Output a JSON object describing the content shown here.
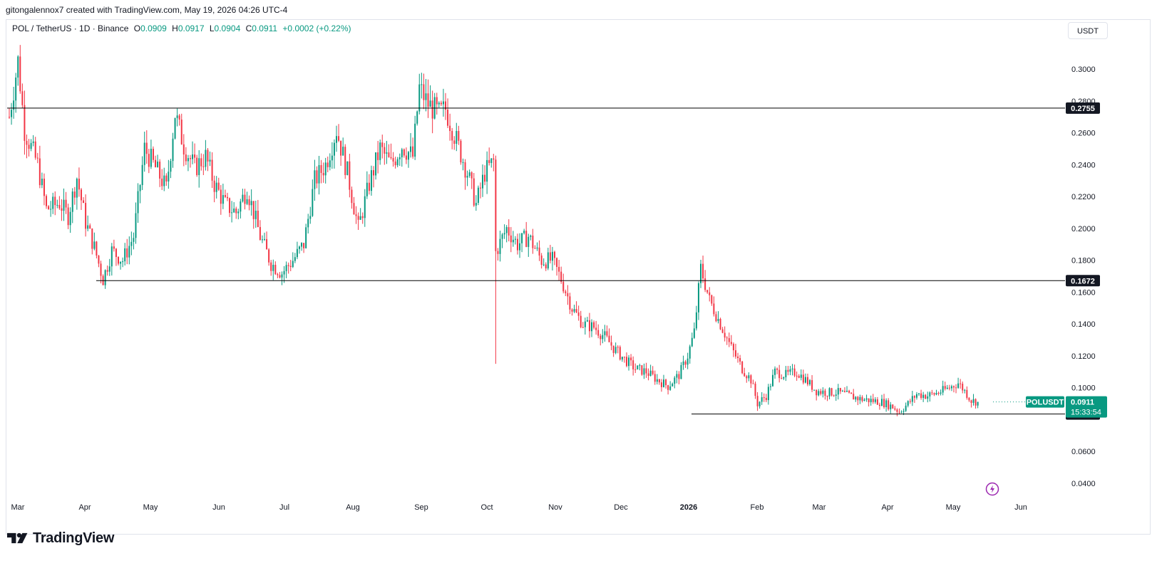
{
  "header": {
    "caption": "gitongalennox7 created with TradingView.com, May 19, 2026 04:26 UTC-4"
  },
  "legend": {
    "symbol": "POL / TetherUS · 1D · Binance",
    "open_label": "O",
    "open": "0.0909",
    "high_label": "H",
    "high": "0.0917",
    "low_label": "L",
    "low": "0.0904",
    "close_label": "C",
    "close": "0.0911",
    "change": "+0.0002 (+0.22%)"
  },
  "currency_button": "USDT",
  "footer": {
    "brand": "TradingView",
    "logo_icon": "tradingview-logo-icon"
  },
  "colors": {
    "up": "#089981",
    "down": "#f23645",
    "text": "#131722",
    "line": "#000000",
    "badge": "#131722"
  },
  "price_badge": {
    "symbol": "POLUSDT",
    "price": "0.0911",
    "countdown": "15:33:54"
  },
  "levels": [
    {
      "label": "0.2755",
      "value": 0.2755
    },
    {
      "label": "0.1672",
      "value": 0.1672
    },
    {
      "label": "0.0835",
      "value": 0.0835
    }
  ],
  "chart_data": {
    "type": "candlestick",
    "y_axis": {
      "range": [
        0.028,
        0.328
      ],
      "ticks": [
        "0.3000",
        "0.2800",
        "0.2600",
        "0.2400",
        "0.2200",
        "0.2000",
        "0.1800",
        "0.1600",
        "0.1400",
        "0.1200",
        "0.1000",
        "0.0600",
        "0.0400"
      ]
    },
    "x_axis": {
      "labels": [
        "Mar",
        "Apr",
        "May",
        "Jun",
        "Jul",
        "Aug",
        "Sep",
        "Oct",
        "Nov",
        "Dec",
        "2026",
        "Feb",
        "Mar",
        "Apr",
        "May",
        "Jun"
      ]
    },
    "close_path": [
      [
        "2025-03-01",
        0.27
      ],
      [
        "2025-03-05",
        0.305
      ],
      [
        "2025-03-08",
        0.262
      ],
      [
        "2025-03-14",
        0.24
      ],
      [
        "2025-03-18",
        0.212
      ],
      [
        "2025-03-24",
        0.216
      ],
      [
        "2025-03-28",
        0.208
      ],
      [
        "2025-04-01",
        0.232
      ],
      [
        "2025-04-05",
        0.204
      ],
      [
        "2025-04-09",
        0.188
      ],
      [
        "2025-04-13",
        0.168
      ],
      [
        "2025-04-17",
        0.186
      ],
      [
        "2025-04-22",
        0.18
      ],
      [
        "2025-04-27",
        0.195
      ],
      [
        "2025-05-02",
        0.25
      ],
      [
        "2025-05-07",
        0.238
      ],
      [
        "2025-05-12",
        0.225
      ],
      [
        "2025-05-16",
        0.272
      ],
      [
        "2025-05-20",
        0.252
      ],
      [
        "2025-05-25",
        0.238
      ],
      [
        "2025-05-30",
        0.245
      ],
      [
        "2025-06-03",
        0.228
      ],
      [
        "2025-06-08",
        0.215
      ],
      [
        "2025-06-13",
        0.21
      ],
      [
        "2025-06-18",
        0.225
      ],
      [
        "2025-06-24",
        0.195
      ],
      [
        "2025-06-29",
        0.178
      ],
      [
        "2025-07-04",
        0.172
      ],
      [
        "2025-07-09",
        0.18
      ],
      [
        "2025-07-14",
        0.19
      ],
      [
        "2025-07-19",
        0.23
      ],
      [
        "2025-07-24",
        0.24
      ],
      [
        "2025-07-29",
        0.262
      ],
      [
        "2025-08-03",
        0.235
      ],
      [
        "2025-08-08",
        0.2
      ],
      [
        "2025-08-13",
        0.228
      ],
      [
        "2025-08-18",
        0.25
      ],
      [
        "2025-08-23",
        0.24
      ],
      [
        "2025-08-28",
        0.252
      ],
      [
        "2025-09-02",
        0.245
      ],
      [
        "2025-09-05",
        0.288
      ],
      [
        "2025-09-09",
        0.278
      ],
      [
        "2025-09-14",
        0.272
      ],
      [
        "2025-09-17",
        0.275
      ],
      [
        "2025-09-22",
        0.255
      ],
      [
        "2025-09-27",
        0.235
      ],
      [
        "2025-10-01",
        0.215
      ],
      [
        "2025-10-05",
        0.235
      ],
      [
        "2025-10-09",
        0.242
      ],
      [
        "2025-10-10",
        0.185
      ],
      [
        "2025-10-15",
        0.2
      ],
      [
        "2025-10-20",
        0.19
      ],
      [
        "2025-10-25",
        0.195
      ],
      [
        "2025-10-31",
        0.18
      ],
      [
        "2025-11-05",
        0.18
      ],
      [
        "2025-11-09",
        0.168
      ],
      [
        "2025-11-14",
        0.15
      ],
      [
        "2025-11-19",
        0.14
      ],
      [
        "2025-11-24",
        0.138
      ],
      [
        "2025-11-29",
        0.132
      ],
      [
        "2025-12-03",
        0.125
      ],
      [
        "2025-12-08",
        0.118
      ],
      [
        "2025-12-13",
        0.112
      ],
      [
        "2025-12-18",
        0.11
      ],
      [
        "2025-12-23",
        0.105
      ],
      [
        "2025-12-28",
        0.101
      ],
      [
        "2026-01-02",
        0.108
      ],
      [
        "2026-01-06",
        0.12
      ],
      [
        "2026-01-09",
        0.135
      ],
      [
        "2026-01-12",
        0.175
      ],
      [
        "2026-01-16",
        0.155
      ],
      [
        "2026-01-21",
        0.14
      ],
      [
        "2026-01-26",
        0.125
      ],
      [
        "2026-01-31",
        0.112
      ],
      [
        "2026-02-04",
        0.105
      ],
      [
        "2026-02-07",
        0.09
      ],
      [
        "2026-02-11",
        0.095
      ],
      [
        "2026-02-15",
        0.11
      ],
      [
        "2026-02-20",
        0.108
      ],
      [
        "2026-02-25",
        0.11
      ],
      [
        "2026-03-01",
        0.105
      ],
      [
        "2026-03-06",
        0.098
      ],
      [
        "2026-03-11",
        0.097
      ],
      [
        "2026-03-16",
        0.097
      ],
      [
        "2026-03-21",
        0.095
      ],
      [
        "2026-03-26",
        0.093
      ],
      [
        "2026-03-31",
        0.092
      ],
      [
        "2026-04-05",
        0.091
      ],
      [
        "2026-04-10",
        0.088
      ],
      [
        "2026-04-13",
        0.085
      ],
      [
        "2026-04-17",
        0.09
      ],
      [
        "2026-04-21",
        0.096
      ],
      [
        "2026-04-26",
        0.095
      ],
      [
        "2026-05-01",
        0.097
      ],
      [
        "2026-05-06",
        0.1
      ],
      [
        "2026-05-10",
        0.103
      ],
      [
        "2026-05-13",
        0.098
      ],
      [
        "2026-05-16",
        0.092
      ],
      [
        "2026-05-19",
        0.0911
      ]
    ]
  }
}
